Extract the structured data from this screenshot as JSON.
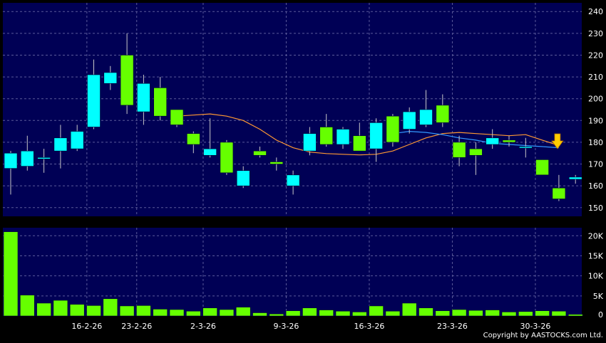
{
  "chart_data": [
    {
      "type": "candlestick",
      "ylim": [
        146,
        244
      ],
      "y_ticks": [
        150,
        160,
        170,
        180,
        190,
        200,
        210,
        220,
        230,
        240
      ],
      "y_tick_labels": [
        "150",
        "160",
        "170",
        "180",
        "190",
        "200",
        "210",
        "220",
        "230",
        "240"
      ],
      "grid": true,
      "up_color": "#00ffff",
      "down_color": "#66ff00",
      "background": "#000055",
      "candles": [
        {
          "open": 168,
          "high": 176,
          "low": 156,
          "close": 175
        },
        {
          "open": 169,
          "high": 183,
          "low": 167,
          "close": 176
        },
        {
          "open": 173,
          "high": 177,
          "low": 166,
          "close": 173
        },
        {
          "open": 176,
          "high": 188,
          "low": 168,
          "close": 182
        },
        {
          "open": 177,
          "high": 188,
          "low": 176,
          "close": 185
        },
        {
          "open": 187,
          "high": 218,
          "low": 186,
          "close": 211
        },
        {
          "open": 207,
          "high": 215,
          "low": 204,
          "close": 212
        },
        {
          "open": 220,
          "high": 230,
          "low": 193,
          "close": 197
        },
        {
          "open": 194,
          "high": 211,
          "low": 188,
          "close": 207
        },
        {
          "open": 205,
          "high": 210,
          "low": 190,
          "close": 192
        },
        {
          "open": 195,
          "high": 195,
          "low": 187,
          "close": 188
        },
        {
          "open": 184,
          "high": 185,
          "low": 175,
          "close": 179
        },
        {
          "open": 174,
          "high": 191,
          "low": 173,
          "close": 177
        },
        {
          "open": 180,
          "high": 181,
          "low": 165,
          "close": 166
        },
        {
          "open": 160,
          "high": 169,
          "low": 159,
          "close": 167
        },
        {
          "open": 176,
          "high": 178,
          "low": 173,
          "close": 174
        },
        {
          "open": 171,
          "high": 173,
          "low": 167,
          "close": 170
        },
        {
          "open": 160,
          "high": 167,
          "low": 156,
          "close": 165
        },
        {
          "open": 176,
          "high": 187,
          "low": 174,
          "close": 184
        },
        {
          "open": 187,
          "high": 193,
          "low": 178,
          "close": 179
        },
        {
          "open": 179,
          "high": 187,
          "low": 177,
          "close": 186
        },
        {
          "open": 183,
          "high": 189,
          "low": 176,
          "close": 176
        },
        {
          "open": 177,
          "high": 191,
          "low": 171,
          "close": 189
        },
        {
          "open": 192,
          "high": 193,
          "low": 178,
          "close": 180
        },
        {
          "open": 186,
          "high": 196,
          "low": 184,
          "close": 194
        },
        {
          "open": 188,
          "high": 204,
          "low": 187,
          "close": 195
        },
        {
          "open": 197,
          "high": 202,
          "low": 187,
          "close": 189
        },
        {
          "open": 180,
          "high": 183,
          "low": 169,
          "close": 173
        },
        {
          "open": 177,
          "high": 180,
          "low": 165,
          "close": 174
        },
        {
          "open": 179,
          "high": 186,
          "low": 177,
          "close": 182
        },
        {
          "open": 181,
          "high": 183,
          "low": 178,
          "close": 180
        },
        {
          "open": 178,
          "high": 182,
          "low": 173,
          "close": 178
        },
        {
          "open": 172,
          "high": 172,
          "low": 165,
          "close": 165
        },
        {
          "open": 159,
          "high": 165,
          "low": 153,
          "close": 154
        },
        {
          "open": 163,
          "high": 165,
          "low": 161,
          "close": 164
        }
      ],
      "moving_averages": [
        {
          "color": "#ff9933",
          "points": [
            [
              10,
              192
            ],
            [
              11,
              192.5
            ],
            [
              12,
              193
            ],
            [
              13,
              192
            ],
            [
              14,
              190
            ],
            [
              15,
              186
            ],
            [
              16,
              181
            ],
            [
              17,
              177.5
            ],
            [
              18,
              175.5
            ],
            [
              19,
              174.8
            ],
            [
              20,
              174.5
            ],
            [
              21,
              174.2
            ],
            [
              22,
              174.5
            ],
            [
              23,
              176
            ],
            [
              24,
              179
            ],
            [
              25,
              182
            ],
            [
              26,
              184
            ],
            [
              27,
              184.5
            ],
            [
              28,
              184
            ],
            [
              29,
              183.5
            ],
            [
              30,
              183
            ],
            [
              31,
              183.5
            ],
            [
              32,
              181
            ],
            [
              33,
              178.5
            ]
          ]
        },
        {
          "color": "#3399ff",
          "points": [
            [
              23,
              184
            ],
            [
              24,
              185
            ],
            [
              25,
              184.5
            ],
            [
              26,
              183.5
            ],
            [
              27,
              182
            ],
            [
              28,
              181
            ],
            [
              29,
              179.5
            ],
            [
              30,
              179
            ],
            [
              31,
              178.5
            ],
            [
              32,
              178
            ],
            [
              33,
              177.5
            ]
          ]
        }
      ],
      "marker": {
        "type": "arrow-down",
        "color": "#ffcc00",
        "index": 33
      }
    },
    {
      "type": "bar",
      "ylim": [
        0,
        22000
      ],
      "y_ticks": [
        0,
        5000,
        10000,
        15000,
        20000
      ],
      "y_tick_labels": [
        "0",
        "5K",
        "10K",
        "15K",
        "20K"
      ],
      "grid": true,
      "bar_color": "#66ff00",
      "background": "#000055",
      "values": [
        21000,
        5200,
        3200,
        3900,
        2900,
        2600,
        4300,
        2500,
        2600,
        1700,
        1600,
        1200,
        2000,
        1600,
        2200,
        800,
        500,
        1300,
        2000,
        1500,
        1200,
        1000,
        2500,
        1200,
        3200,
        2000,
        1300,
        1600,
        1400,
        1500,
        1000,
        1100,
        1300,
        1200,
        400
      ],
      "x_tick_labels": [
        {
          "label": "16-2-26",
          "index": 5
        },
        {
          "label": "23-2-26",
          "index": 8
        },
        {
          "label": "2-3-26",
          "index": 12
        },
        {
          "label": "9-3-26",
          "index": 17
        },
        {
          "label": "16-3-26",
          "index": 22
        },
        {
          "label": "23-3-26",
          "index": 27
        },
        {
          "label": "30-3-26",
          "index": 32
        }
      ]
    }
  ],
  "copyright": "Copyright by AASTOCKS.com Ltd."
}
